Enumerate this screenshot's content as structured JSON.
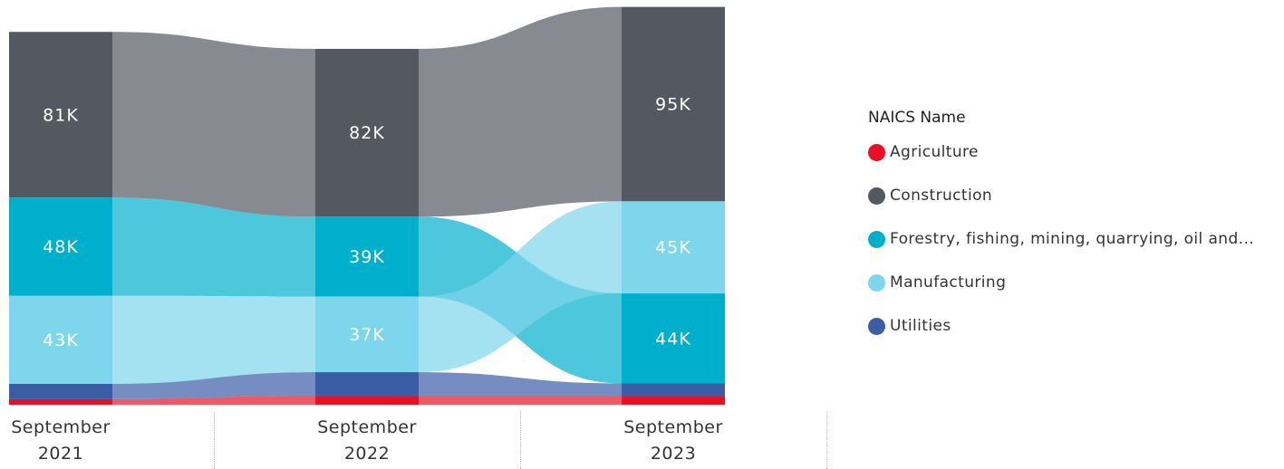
{
  "chart_data": {
    "type": "ribbon",
    "categories": [
      "September 2021",
      "September 2022",
      "September 2023"
    ],
    "legend_title": "NAICS Name",
    "series": [
      {
        "name": "Agriculture",
        "color": "#e81123",
        "values": [
          2700,
          4400,
          4400
        ],
        "value_labels": [
          null,
          null,
          null
        ]
      },
      {
        "name": "Construction",
        "color": "#545861",
        "values": [
          81000,
          82000,
          95000
        ],
        "value_labels": [
          "81K",
          "82K",
          "95K"
        ]
      },
      {
        "name": "Forestry, fishing, mining, quarrying, oil and...",
        "color": "#00afcc",
        "values": [
          48000,
          39000,
          44000
        ],
        "value_labels": [
          "48K",
          "39K",
          "44K"
        ]
      },
      {
        "name": "Manufacturing",
        "color": "#7ed6ec",
        "values": [
          43000,
          37000,
          45000
        ],
        "value_labels": [
          "43K",
          "37K",
          "45K"
        ]
      },
      {
        "name": "Utilities",
        "color": "#3a5da5",
        "values": [
          7500,
          11500,
          6000
        ],
        "value_labels": [
          null,
          null,
          null
        ]
      }
    ]
  }
}
